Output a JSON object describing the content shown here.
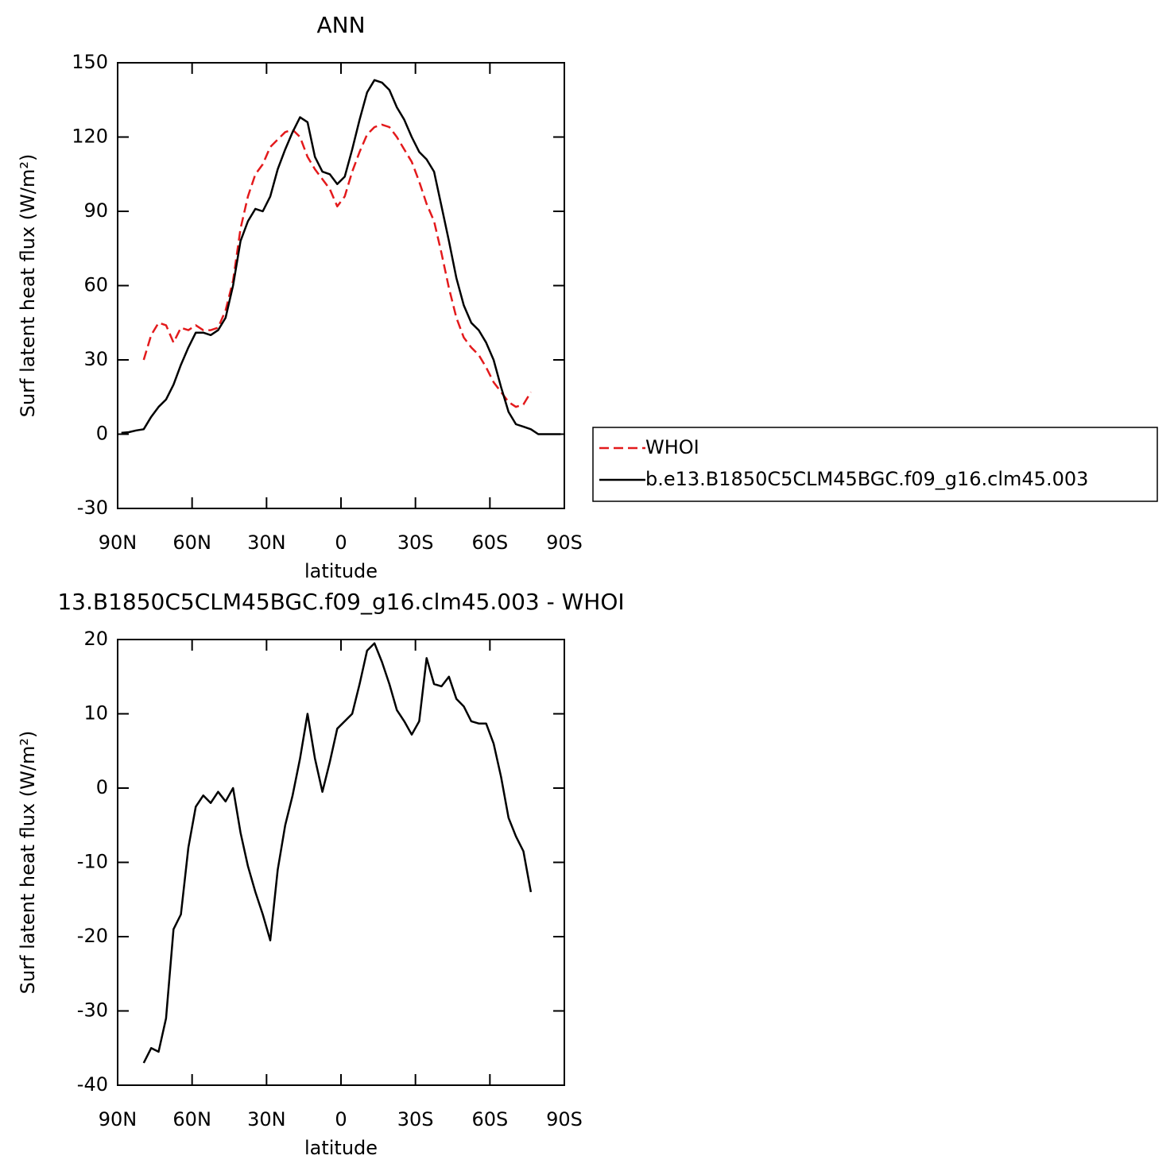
{
  "chart_data": [
    {
      "type": "line",
      "title": "ANN",
      "xlabel": "latitude",
      "ylabel": "Surf latent heat flux (W/m²)",
      "x": [
        88.5,
        85.5,
        82.5,
        79.5,
        76.5,
        73.5,
        70.5,
        67.5,
        64.5,
        61.5,
        58.5,
        55.5,
        52.5,
        49.5,
        46.5,
        43.5,
        40.5,
        37.5,
        34.5,
        31.5,
        28.5,
        25.5,
        22.5,
        19.5,
        16.5,
        13.5,
        10.5,
        7.5,
        4.5,
        1.5,
        -1.5,
        -4.5,
        -7.5,
        -10.5,
        -13.5,
        -16.5,
        -19.5,
        -22.5,
        -25.5,
        -28.5,
        -31.5,
        -34.5,
        -37.5,
        -40.5,
        -43.5,
        -46.5,
        -49.5,
        -52.5,
        -55.5,
        -58.5,
        -61.5,
        -64.5,
        -67.5,
        -70.5,
        -73.5,
        -76.5,
        -79.5,
        -82.5,
        -85.5,
        -88.5
      ],
      "series": [
        {
          "name": "WHOI",
          "color": "#e31a1c",
          "dash": true,
          "values": [
            null,
            null,
            null,
            30,
            40,
            45,
            44,
            37,
            43,
            42,
            44,
            42,
            42,
            43,
            50,
            62,
            83,
            96,
            105,
            109,
            116,
            119,
            122,
            123,
            120,
            112,
            107,
            103,
            99,
            92,
            96,
            106,
            114,
            121,
            124,
            125,
            124,
            120,
            115,
            110,
            102,
            93,
            86,
            73,
            59,
            47,
            39,
            35,
            32,
            27,
            21,
            17,
            13,
            11,
            12,
            17,
            null,
            null,
            null,
            null
          ]
        },
        {
          "name": "b.e13.B1850C5CLM45BGC.f09_g16.clm45.003",
          "color": "#000000",
          "dash": false,
          "values": [
            0.5,
            0.8,
            1.5,
            2,
            7,
            11,
            14,
            20,
            28,
            35,
            41,
            41,
            40,
            42,
            47,
            60,
            78,
            86,
            91,
            90,
            96,
            107,
            115,
            122,
            128,
            126,
            112,
            106,
            105,
            101,
            104,
            115,
            127,
            138,
            143,
            142,
            139,
            132,
            127,
            120,
            114,
            111,
            106,
            92,
            78,
            63,
            52,
            45,
            42,
            37,
            30,
            19,
            9,
            4,
            3,
            2,
            0,
            0,
            0,
            0
          ]
        }
      ],
      "xlim": [
        90,
        -90
      ],
      "xticks": [
        {
          "value": 90,
          "label": "90N"
        },
        {
          "value": 60,
          "label": "60N"
        },
        {
          "value": 30,
          "label": "30N"
        },
        0,
        {
          "value": -30,
          "label": "30S"
        },
        {
          "value": -60,
          "label": "60S"
        },
        {
          "value": -90,
          "label": "90S"
        }
      ],
      "ylim": [
        -30,
        150
      ],
      "yticks": [
        -30,
        0,
        30,
        60,
        90,
        120,
        150
      ],
      "legend": "right"
    },
    {
      "type": "line",
      "title": "13.B1850C5CLM45BGC.f09_g16.clm45.003 - WHOI",
      "xlabel": "latitude",
      "ylabel": "Surf latent heat flux (W/m²)",
      "x": [
        79.5,
        76.5,
        73.5,
        70.5,
        67.5,
        64.5,
        61.5,
        58.5,
        55.5,
        52.5,
        49.5,
        46.5,
        43.5,
        40.5,
        37.5,
        34.5,
        31.5,
        28.5,
        25.5,
        22.5,
        19.5,
        16.5,
        13.5,
        10.5,
        7.5,
        4.5,
        1.5,
        -1.5,
        -4.5,
        -7.5,
        -10.5,
        -13.5,
        -16.5,
        -19.5,
        -22.5,
        -25.5,
        -28.5,
        -31.5,
        -34.5,
        -37.5,
        -40.5,
        -43.5,
        -46.5,
        -49.5,
        -52.5,
        -55.5,
        -58.5,
        -61.5,
        -64.5,
        -67.5,
        -70.5,
        -73.5,
        -76.5
      ],
      "series": [
        {
          "color": "#000000",
          "dash": false,
          "values": [
            -37,
            -35,
            -35.5,
            -31,
            -19,
            -17,
            -8,
            -2.5,
            -1,
            -2,
            -0.5,
            -1.8,
            0,
            -6,
            -10.5,
            -14,
            -17,
            -20.5,
            -11,
            -5,
            -1,
            4,
            10,
            4,
            -0.5,
            3.5,
            8,
            9,
            10,
            14,
            18.5,
            19.5,
            17,
            14,
            10.5,
            9,
            7.2,
            9,
            17.5,
            14,
            13.7,
            15,
            12,
            11,
            9,
            8.7,
            8.7,
            6,
            1.5,
            -4,
            -6.5,
            -8.5,
            -14
          ]
        }
      ],
      "xlim": [
        90,
        -90
      ],
      "xticks": [
        {
          "value": 90,
          "label": "90N"
        },
        {
          "value": 60,
          "label": "60N"
        },
        {
          "value": 30,
          "label": "30N"
        },
        0,
        {
          "value": -30,
          "label": "30S"
        },
        {
          "value": -60,
          "label": "60S"
        },
        {
          "value": -90,
          "label": "90S"
        }
      ],
      "ylim": [
        -40,
        20
      ],
      "yticks": [
        -40,
        -30,
        -20,
        -10,
        0,
        10,
        20
      ]
    }
  ]
}
